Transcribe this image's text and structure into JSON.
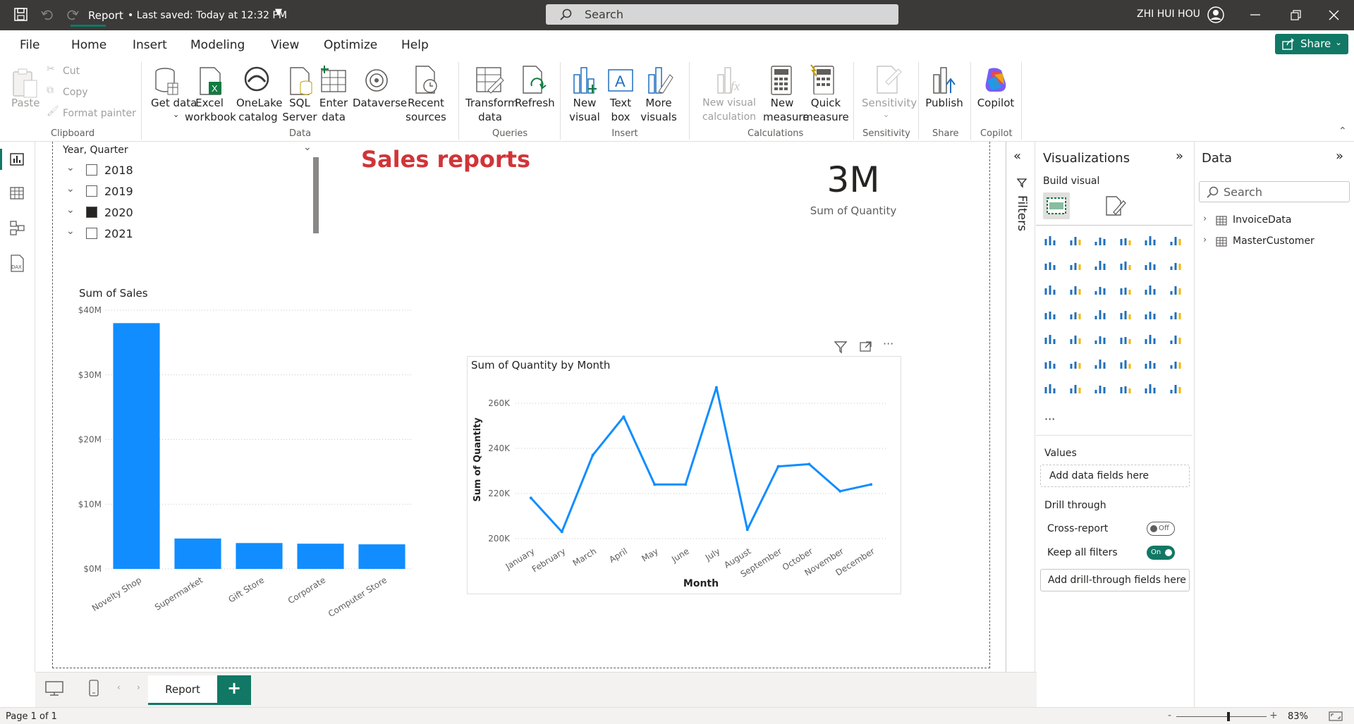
{
  "titlebar": {
    "doc_title": "Report",
    "saved_status": "• Last saved: Today at 12:32 PM",
    "search_placeholder": "Search",
    "user_name": "ZHI HUI HOU"
  },
  "menu": {
    "items": [
      "File",
      "Home",
      "Insert",
      "Modeling",
      "View",
      "Optimize",
      "Help"
    ],
    "active": "Home",
    "share_label": "Share"
  },
  "ribbon": {
    "clipboard": {
      "paste": "Paste",
      "cut": "Cut",
      "copy": "Copy",
      "format_painter": "Format painter",
      "group": "Clipboard"
    },
    "data": {
      "get_data": "Get data",
      "excel": "Excel workbook",
      "onelake": "OneLake catalog",
      "sql": "SQL Server",
      "enter_data": "Enter data",
      "dataverse": "Dataverse",
      "recent": "Recent sources",
      "group": "Data"
    },
    "queries": {
      "transform": "Transform data",
      "refresh": "Refresh",
      "group": "Queries"
    },
    "insert": {
      "new_visual": "New visual",
      "text_box": "Text box",
      "more_visuals": "More visuals",
      "group": "Insert"
    },
    "calculations": {
      "new_visual_calc": "New visual calculation",
      "new_measure": "New measure",
      "quick_measure": "Quick measure",
      "group": "Calculations"
    },
    "sensitivity": {
      "label": "Sensitivity",
      "group": "Sensitivity"
    },
    "share": {
      "publish": "Publish",
      "group": "Share"
    },
    "copilot": {
      "label": "Copilot",
      "group": "Copilot"
    }
  },
  "slicer": {
    "header": "Year, Quarter",
    "items": [
      {
        "label": "2018",
        "checked": false
      },
      {
        "label": "2019",
        "checked": false
      },
      {
        "label": "2020",
        "checked": true
      },
      {
        "label": "2021",
        "checked": false
      }
    ]
  },
  "report_title": "Sales reports",
  "card": {
    "value": "3M",
    "label": "Sum of Quantity"
  },
  "bar_chart": {
    "title": "Sum of Sales",
    "chart_data": {
      "type": "bar",
      "title": "Sum of Sales",
      "categories": [
        "Novelty Shop",
        "Supermarket",
        "Gift Store",
        "Corporate",
        "Computer Store"
      ],
      "values": [
        38,
        4.7,
        4.0,
        3.9,
        3.8
      ],
      "ylim": [
        0,
        40
      ],
      "yticks": [
        "$0M",
        "$10M",
        "$20M",
        "$30M",
        "$40M"
      ],
      "ytick_values": [
        0,
        10,
        20,
        30,
        40
      ],
      "color": "#118dff",
      "grid": true
    }
  },
  "line_chart": {
    "title": "Sum of Quantity by Month",
    "chart_data": {
      "type": "line",
      "title": "Sum of Quantity by Month",
      "xlabel": "Month",
      "ylabel": "Sum of Quantity",
      "x": [
        "January",
        "February",
        "March",
        "April",
        "May",
        "June",
        "July",
        "August",
        "September",
        "October",
        "November",
        "December"
      ],
      "values": [
        218000,
        203000,
        237000,
        254000,
        224000,
        224000,
        267000,
        204000,
        232000,
        233000,
        221000,
        224000
      ],
      "ylim": [
        200000,
        270000
      ],
      "yticks": [
        "200K",
        "220K",
        "240K",
        "260K"
      ],
      "ytick_values": [
        200000,
        220000,
        240000,
        260000
      ],
      "color": "#118dff",
      "grid": true
    }
  },
  "filters_pane": {
    "label": "Filters"
  },
  "viz_pane": {
    "title": "Visualizations",
    "build_visual": "Build visual",
    "values_label": "Values",
    "values_placeholder": "Add data fields here",
    "drill_through": "Drill through",
    "cross_report": "Cross-report",
    "cross_report_state": "Off",
    "keep_filters": "Keep all filters",
    "keep_filters_state": "On",
    "drill_placeholder": "Add drill-through fields here",
    "more": "···"
  },
  "data_pane": {
    "title": "Data",
    "search_placeholder": "Search",
    "tables": [
      "InvoiceData",
      "MasterCustomer"
    ]
  },
  "tabs": {
    "pages": [
      "Report"
    ],
    "add": "+"
  },
  "status": {
    "page": "Page 1 of 1",
    "zoom": "83%",
    "zoom_minus": "-",
    "zoom_plus": "+"
  }
}
